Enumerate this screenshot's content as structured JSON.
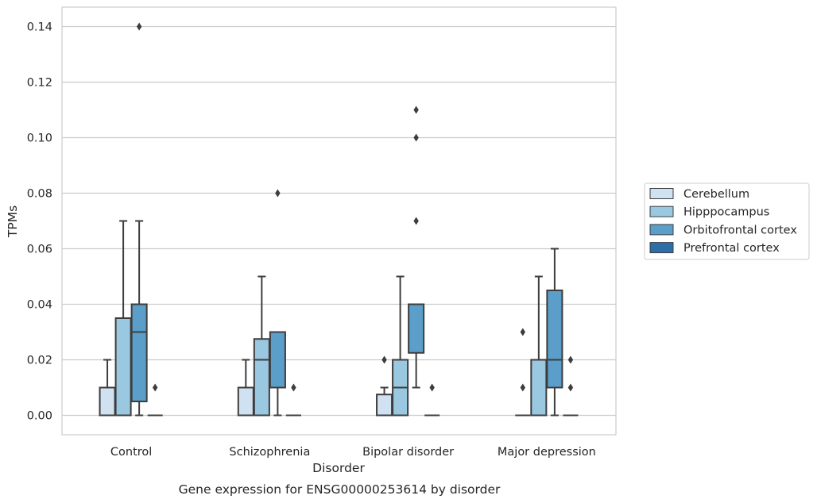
{
  "caption": "Gene expression for ENSG00000253614 by disorder",
  "chart_data": {
    "type": "box",
    "xlabel": "Disorder",
    "ylabel": "TPMs",
    "ylim": [
      -0.007,
      0.147
    ],
    "yticks": [
      "0.00",
      "0.02",
      "0.04",
      "0.06",
      "0.08",
      "0.10",
      "0.12",
      "0.14"
    ],
    "ytick_values": [
      0,
      0.02,
      0.04,
      0.06,
      0.08,
      0.1,
      0.12,
      0.14
    ],
    "grid": "horizontal",
    "legend_position": "right",
    "categories": [
      "Control",
      "Schizophrenia",
      "Bipolar disorder",
      "Major depression"
    ],
    "series": [
      {
        "name": "Cerebellum",
        "color": "#d0e1f2",
        "boxes": [
          {
            "whislo": 0,
            "q1": 0,
            "med": 0,
            "q3": 0.01,
            "whishi": 0.02,
            "fliers": []
          },
          {
            "whislo": 0,
            "q1": 0,
            "med": 0,
            "q3": 0.01,
            "whishi": 0.02,
            "fliers": []
          },
          {
            "whislo": 0,
            "q1": 0,
            "med": 0,
            "q3": 0.0075,
            "whishi": 0.01,
            "fliers": [
              0.02
            ]
          },
          {
            "whislo": 0,
            "q1": 0,
            "med": 0,
            "q3": 0,
            "whishi": 0,
            "fliers": [
              0.01,
              0.03
            ]
          }
        ]
      },
      {
        "name": "Hipppocampus",
        "color": "#9ac8e0",
        "boxes": [
          {
            "whislo": 0,
            "q1": 0,
            "med": 0,
            "q3": 0.035,
            "whishi": 0.07,
            "fliers": []
          },
          {
            "whislo": 0,
            "q1": 0,
            "med": 0.02,
            "q3": 0.0275,
            "whishi": 0.05,
            "fliers": []
          },
          {
            "whislo": 0,
            "q1": 0,
            "med": 0.01,
            "q3": 0.02,
            "whishi": 0.05,
            "fliers": []
          },
          {
            "whislo": 0,
            "q1": 0,
            "med": 0,
            "q3": 0.02,
            "whishi": 0.05,
            "fliers": []
          }
        ]
      },
      {
        "name": "Orbitofrontal cortex",
        "color": "#5a9ec9",
        "boxes": [
          {
            "whislo": 0,
            "q1": 0.005,
            "med": 0.03,
            "q3": 0.04,
            "whishi": 0.07,
            "fliers": [
              0.14
            ]
          },
          {
            "whislo": 0,
            "q1": 0.01,
            "med": 0.01,
            "q3": 0.03,
            "whishi": 0.03,
            "fliers": [
              0.08
            ]
          },
          {
            "whislo": 0.01,
            "q1": 0.0225,
            "med": 0.04,
            "q3": 0.04,
            "whishi": 0.04,
            "fliers": [
              0.07,
              0.1,
              0.11
            ]
          },
          {
            "whislo": 0,
            "q1": 0.01,
            "med": 0.02,
            "q3": 0.045,
            "whishi": 0.06,
            "fliers": []
          }
        ]
      },
      {
        "name": "Prefrontal cortex",
        "color": "#2d6ea8",
        "boxes": [
          {
            "whislo": 0,
            "q1": 0,
            "med": 0,
            "q3": 0,
            "whishi": 0,
            "fliers": [
              0.01
            ]
          },
          {
            "whislo": 0,
            "q1": 0,
            "med": 0,
            "q3": 0,
            "whishi": 0,
            "fliers": [
              0.01
            ]
          },
          {
            "whislo": 0,
            "q1": 0,
            "med": 0,
            "q3": 0,
            "whishi": 0,
            "fliers": [
              0.01
            ]
          },
          {
            "whislo": 0,
            "q1": 0,
            "med": 0,
            "q3": 0,
            "whishi": 0,
            "fliers": [
              0.01,
              0.02
            ]
          }
        ]
      }
    ]
  }
}
